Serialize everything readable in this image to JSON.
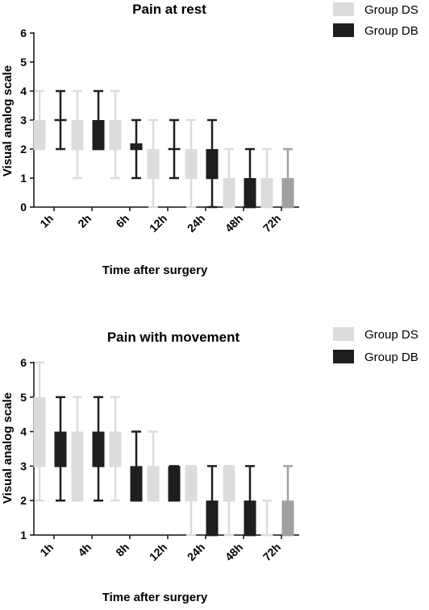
{
  "chart_data": [
    {
      "type": "boxplot",
      "title": "Pain at rest",
      "xlabel": "Time after surgery",
      "ylabel": "Visual analog scale",
      "ylim": [
        0,
        6
      ],
      "yticks": [
        0,
        1,
        2,
        3,
        4,
        5,
        6
      ],
      "categories": [
        "1h",
        "2h",
        "6h",
        "12h",
        "24h",
        "48h",
        "72h"
      ],
      "legend_position": "top-right",
      "series": [
        {
          "name": "Group DS",
          "color": "#dcdcdc",
          "boxes": [
            {
              "min": 2,
              "q1": 2,
              "median": 2,
              "q3": 3,
              "max": 4
            },
            {
              "min": 1,
              "q1": 2,
              "median": 2,
              "q3": 3,
              "max": 4
            },
            {
              "min": 1,
              "q1": 2,
              "median": 2,
              "q3": 3,
              "max": 4
            },
            {
              "min": 0,
              "q1": 1,
              "median": 1,
              "q3": 2,
              "max": 3
            },
            {
              "min": 0,
              "q1": 1,
              "median": 1,
              "q3": 2,
              "max": 3
            },
            {
              "min": 0,
              "q1": 0,
              "median": 0,
              "q3": 1,
              "max": 2
            },
            {
              "min": 0,
              "q1": 0,
              "median": 0,
              "q3": 1,
              "max": 2
            }
          ]
        },
        {
          "name": "Group DB",
          "color": "#1e1e1e",
          "boxes": [
            {
              "min": 2,
              "q1": 3,
              "median": 3,
              "q3": 3,
              "max": 4
            },
            {
              "min": 2,
              "q1": 2,
              "median": 2,
              "q3": 3,
              "max": 4
            },
            {
              "min": 1,
              "q1": 2,
              "median": 2,
              "q3": 2.2,
              "max": 3
            },
            {
              "min": 1,
              "q1": 2,
              "median": 2,
              "q3": 2,
              "max": 3
            },
            {
              "min": 0,
              "q1": 1,
              "median": 1,
              "q3": 2,
              "max": 3
            },
            {
              "min": 0,
              "q1": 0,
              "median": 0,
              "q3": 1,
              "max": 2
            },
            {
              "min": 0,
              "q1": 0,
              "median": 0,
              "q3": 1,
              "max": 2,
              "color": "#a0a0a0"
            }
          ]
        }
      ]
    },
    {
      "type": "boxplot",
      "title": "Pain with movement",
      "xlabel": "Time after surgery",
      "ylabel": "Visual analog scale",
      "ylim": [
        1,
        6
      ],
      "yticks": [
        1,
        2,
        3,
        4,
        5,
        6
      ],
      "categories": [
        "1h",
        "4h",
        "8h",
        "12h",
        "24h",
        "48h",
        "72h"
      ],
      "legend_position": "top-right",
      "series": [
        {
          "name": "Group DS",
          "color": "#dcdcdc",
          "boxes": [
            {
              "min": 2,
              "q1": 3,
              "median": 3,
              "q3": 5,
              "max": 6
            },
            {
              "min": 2,
              "q1": 2,
              "median": 2,
              "q3": 4,
              "max": 5
            },
            {
              "min": 2,
              "q1": 3,
              "median": 3,
              "q3": 4,
              "max": 5
            },
            {
              "min": 2,
              "q1": 2,
              "median": 2,
              "q3": 3,
              "max": 4
            },
            {
              "min": 1,
              "q1": 2,
              "median": 2,
              "q3": 3,
              "max": 3
            },
            {
              "min": 1,
              "q1": 2,
              "median": 2,
              "q3": 3,
              "max": 3
            },
            {
              "min": 1,
              "q1": 1,
              "median": 1,
              "q3": 1,
              "max": 2
            }
          ]
        },
        {
          "name": "Group DB",
          "color": "#1e1e1e",
          "boxes": [
            {
              "min": 2,
              "q1": 3,
              "median": 3,
              "q3": 4,
              "max": 5
            },
            {
              "min": 2,
              "q1": 3,
              "median": 3,
              "q3": 4,
              "max": 5
            },
            {
              "min": 2,
              "q1": 2,
              "median": 2,
              "q3": 3,
              "max": 4
            },
            {
              "min": 2,
              "q1": 2,
              "median": 2,
              "q3": 3,
              "max": 3
            },
            {
              "min": 1,
              "q1": 1,
              "median": 1,
              "q3": 2,
              "max": 3
            },
            {
              "min": 1,
              "q1": 1,
              "median": 1,
              "q3": 2,
              "max": 3
            },
            {
              "min": 1,
              "q1": 1,
              "median": 1,
              "q3": 2,
              "max": 3,
              "color": "#a0a0a0"
            }
          ]
        }
      ]
    }
  ]
}
